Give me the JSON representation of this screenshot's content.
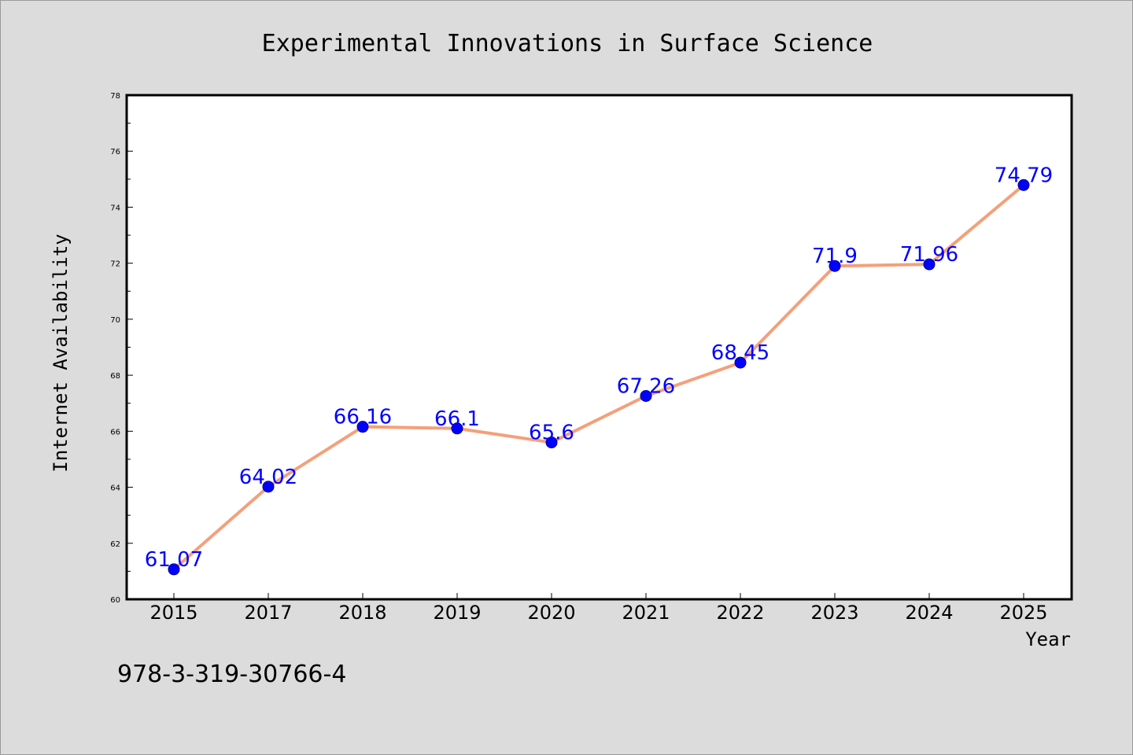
{
  "chart_data": {
    "type": "line",
    "title": "Experimental Innovations in Surface Science",
    "xlabel": "Year",
    "ylabel": "Internet Availability",
    "categories": [
      "2015",
      "2017",
      "2018",
      "2019",
      "2020",
      "2021",
      "2022",
      "2023",
      "2024",
      "2025"
    ],
    "series": [
      {
        "values": [
          61.07,
          64.02,
          66.16,
          66.1,
          65.6,
          67.26,
          68.45,
          71.9,
          71.96,
          74.79
        ],
        "data_labels": [
          "61.07",
          "64.02",
          "66.16",
          "66.1",
          "65.6",
          "67.26",
          "68.45",
          "71.9",
          "71.96",
          "74.79"
        ]
      }
    ],
    "ylim": [
      60,
      78
    ],
    "yticks": [
      "60",
      "62",
      "64",
      "66",
      "68",
      "70",
      "72",
      "74",
      "76",
      "78"
    ],
    "grid": false,
    "legend": "none",
    "colors": {
      "line": "#f4a07a",
      "marker": "#0000ff",
      "data_label": "#0000ff",
      "plot_background": "#ffffff",
      "figure_background": "#dcdcdc"
    }
  },
  "footnote": "978-3-319-30766-4"
}
